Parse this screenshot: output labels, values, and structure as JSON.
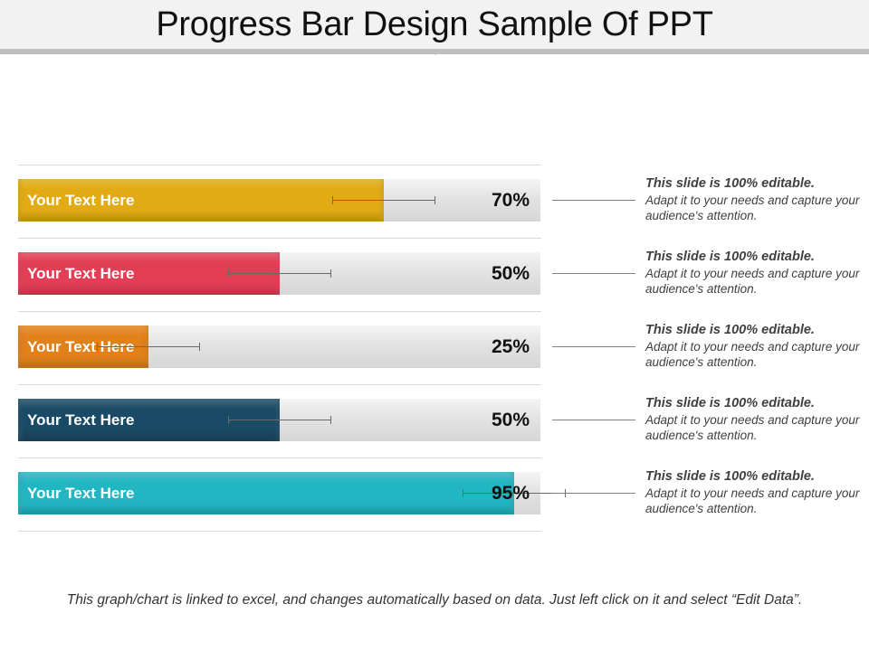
{
  "title": "Progress Bar Design Sample Of PPT",
  "footer": "This graph/chart is linked to excel, and changes automatically based on data. Just left click on it and select “Edit Data”.",
  "chart_data": {
    "type": "bar",
    "orientation": "horizontal",
    "unit": "%",
    "xlim": [
      0,
      100
    ],
    "error_bars": true,
    "categories": [
      "Your Text Here",
      "Your Text Here",
      "Your Text Here",
      "Your Text Here",
      "Your Text Here"
    ],
    "values": [
      70,
      50,
      25,
      50,
      95
    ],
    "value_labels": [
      "70%",
      "50%",
      "25%",
      "50%",
      "95%"
    ],
    "colors": [
      "#e2ab14",
      "#e23e55",
      "#e2801a",
      "#1a4b66",
      "#22b5c2"
    ]
  },
  "notes": [
    {
      "title": "This slide is 100% editable.",
      "body": "Adapt it to your needs and capture your audience's attention."
    },
    {
      "title": "This slide is 100% editable.",
      "body": "Adapt it to your needs and capture your audience's attention."
    },
    {
      "title": "This slide is 100% editable.",
      "body": "Adapt it to your needs and capture your audience's attention."
    },
    {
      "title": "This slide is 100% editable.",
      "body": "Adapt it to your needs and capture your audience's attention."
    },
    {
      "title": "This slide is 100% editable.",
      "body": "Adapt it to your needs and capture your audience's attention."
    }
  ]
}
